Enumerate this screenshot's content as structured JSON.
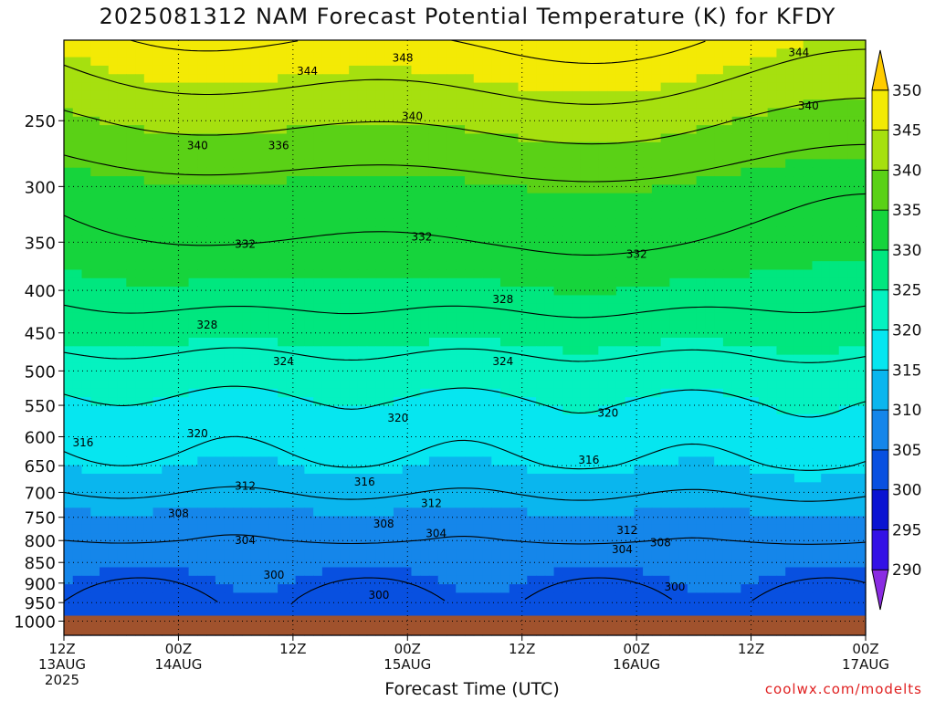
{
  "title": "2025081312 NAM Forecast Potential Temperature (K) for KFDY",
  "credit": "coolwx.com/modelts",
  "chart_data": {
    "type": "heatmap",
    "title": "2025081312 NAM Forecast Potential Temperature (K) for KFDY",
    "xlabel": "Forecast Time (UTC)",
    "ylabel": "",
    "x_ticks": [
      {
        "hour": 0,
        "label": "12Z",
        "date": "13AUG",
        "year": "2025"
      },
      {
        "hour": 12,
        "label": "00Z",
        "date": "14AUG",
        "year": ""
      },
      {
        "hour": 24,
        "label": "12Z",
        "date": "",
        "year": ""
      },
      {
        "hour": 36,
        "label": "00Z",
        "date": "15AUG",
        "year": ""
      },
      {
        "hour": 48,
        "label": "12Z",
        "date": "",
        "year": ""
      },
      {
        "hour": 60,
        "label": "00Z",
        "date": "16AUG",
        "year": ""
      },
      {
        "hour": 72,
        "label": "12Z",
        "date": "",
        "year": ""
      },
      {
        "hour": 84,
        "label": "00Z",
        "date": "17AUG",
        "year": ""
      }
    ],
    "xlim": [
      0,
      84
    ],
    "y_ticks": [
      250,
      300,
      350,
      400,
      450,
      500,
      550,
      600,
      650,
      700,
      750,
      800,
      850,
      900,
      950,
      1000
    ],
    "ylim": [
      1040,
      200
    ],
    "y_scale": "log-pressure",
    "grid": true,
    "colorbar": {
      "levels": [
        290,
        295,
        300,
        305,
        310,
        315,
        320,
        325,
        330,
        335,
        340,
        345,
        350
      ],
      "colors": [
        "#8a2be2",
        "#3311e6",
        "#0a14d2",
        "#0850e0",
        "#1586ea",
        "#0ab6ee",
        "#06e6f0",
        "#05f2c0",
        "#00e77f",
        "#16d43c",
        "#5ad116",
        "#a6e00f",
        "#f3ea05",
        "#ffcc00"
      ]
    },
    "contour_levels": [
      300,
      304,
      308,
      312,
      316,
      320,
      324,
      328,
      332,
      336,
      340,
      344,
      348
    ],
    "levels_profile": {
      "pressure": [
        1000,
        950,
        900,
        850,
        800,
        750,
        700,
        650,
        600,
        550,
        500,
        450,
        400,
        350,
        300,
        250,
        200
      ],
      "theta_start": [
        304,
        304,
        305,
        306,
        308,
        309,
        312,
        315,
        317,
        319,
        322,
        326,
        329,
        331,
        333,
        339,
        346
      ]
    },
    "contour_labels": [
      {
        "value": "348",
        "hour": 35.5,
        "p": 210
      },
      {
        "value": "344",
        "hour": 25.5,
        "p": 218
      },
      {
        "value": "344",
        "hour": 77,
        "p": 207
      },
      {
        "value": "340",
        "hour": 14,
        "p": 268
      },
      {
        "value": "340",
        "hour": 36.5,
        "p": 247
      },
      {
        "value": "340",
        "hour": 78,
        "p": 240
      },
      {
        "value": "336",
        "hour": 22.5,
        "p": 268
      },
      {
        "value": "332",
        "hour": 19,
        "p": 352
      },
      {
        "value": "332",
        "hour": 37.5,
        "p": 345
      },
      {
        "value": "332",
        "hour": 60,
        "p": 362
      },
      {
        "value": "328",
        "hour": 15,
        "p": 440
      },
      {
        "value": "328",
        "hour": 46,
        "p": 410
      },
      {
        "value": "324",
        "hour": 23,
        "p": 487
      },
      {
        "value": "324",
        "hour": 46,
        "p": 487
      },
      {
        "value": "320",
        "hour": 14,
        "p": 595
      },
      {
        "value": "320",
        "hour": 35,
        "p": 570
      },
      {
        "value": "320",
        "hour": 57,
        "p": 562
      },
      {
        "value": "316",
        "hour": 2,
        "p": 610
      },
      {
        "value": "316",
        "hour": 31.5,
        "p": 680
      },
      {
        "value": "316",
        "hour": 55,
        "p": 640
      },
      {
        "value": "312",
        "hour": 19,
        "p": 688
      },
      {
        "value": "312",
        "hour": 38.5,
        "p": 722
      },
      {
        "value": "312",
        "hour": 59,
        "p": 778
      },
      {
        "value": "308",
        "hour": 12,
        "p": 742
      },
      {
        "value": "308",
        "hour": 33.5,
        "p": 764
      },
      {
        "value": "308",
        "hour": 62.5,
        "p": 805
      },
      {
        "value": "304",
        "hour": 19,
        "p": 800
      },
      {
        "value": "304",
        "hour": 39,
        "p": 784
      },
      {
        "value": "304",
        "hour": 58.5,
        "p": 820
      },
      {
        "value": "300",
        "hour": 22,
        "p": 880
      },
      {
        "value": "300",
        "hour": 33,
        "p": 930
      },
      {
        "value": "300",
        "hour": 64,
        "p": 910
      }
    ]
  }
}
